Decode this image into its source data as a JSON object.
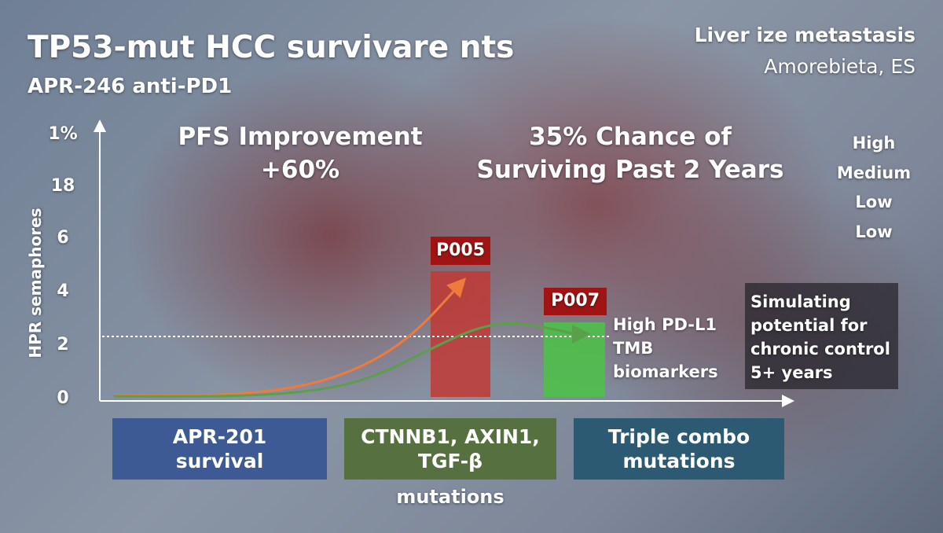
{
  "header": {
    "title": "TP53-mut HCC survivare nts",
    "subtitle": "APR-246 anti-PD1",
    "corner_title": "Liver ize metastasis",
    "corner_subtitle": "Amorebieta, ES"
  },
  "axis": {
    "label": "HPR semaphores",
    "ticks": [
      "1%",
      "18",
      "6",
      "4",
      "2",
      "0"
    ]
  },
  "callouts": {
    "pfs": [
      "PFS Improvement",
      "+60%"
    ],
    "chance": [
      "35% Chance of",
      "Surviving Past 2 Years"
    ]
  },
  "levels": [
    "High",
    "Medium",
    "Low",
    "Low"
  ],
  "bars": [
    {
      "label": "P005"
    },
    {
      "label": "P007"
    }
  ],
  "biomarkers": [
    "High PD-L1",
    "TMB",
    "biomarkers"
  ],
  "note": [
    "Simulating",
    "potential for",
    "chronic control",
    "5+ years"
  ],
  "categories": [
    [
      "APR-201",
      "survival"
    ],
    [
      "CTNNB1, AXIN1,",
      "TGF-β",
      "mutations"
    ],
    [
      "Triple combo",
      "mutations"
    ]
  ]
}
